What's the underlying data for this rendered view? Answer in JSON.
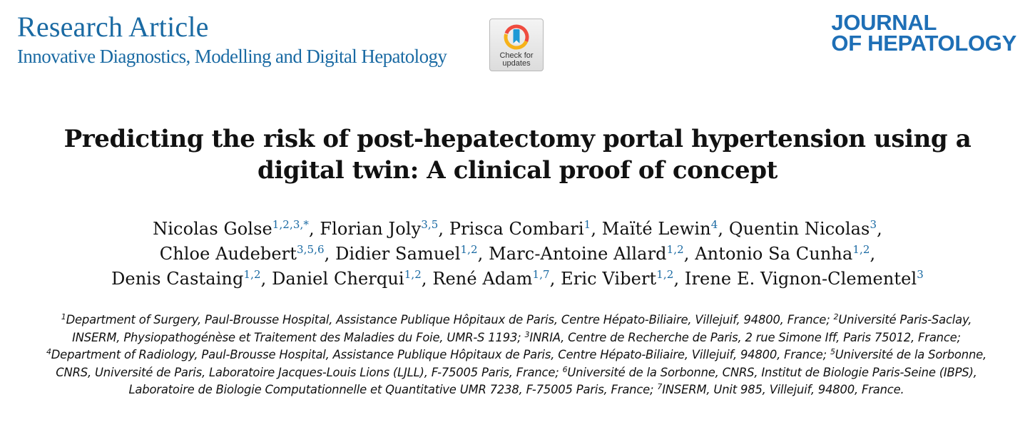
{
  "header": {
    "article_type": "Research Article",
    "section": "Innovative Diagnostics, Modelling and Digital Hepatology",
    "check_updates": "Check for\nupdates",
    "journal_line1": "JOURNAL",
    "journal_line2": "OF HEPATOLOGY"
  },
  "title": {
    "line1": "Predicting the risk of post-hepatectomy portal hypertension using a",
    "line2": "digital twin: A clinical proof of concept"
  },
  "authors": [
    {
      "name": "Nicolas Golse",
      "sup": "1,2,3,*",
      "sep": ", ",
      "br": false
    },
    {
      "name": "Florian Joly",
      "sup": "3,5",
      "sep": ", ",
      "br": false
    },
    {
      "name": "Prisca Combari",
      "sup": "1",
      "sep": ", ",
      "br": false
    },
    {
      "name": "Maïté Lewin",
      "sup": "4",
      "sep": ", ",
      "br": false
    },
    {
      "name": "Quentin Nicolas",
      "sup": "3",
      "sep": ",",
      "br": true
    },
    {
      "name": "Chloe Audebert",
      "sup": "3,5,6",
      "sep": ", ",
      "br": false
    },
    {
      "name": "Didier Samuel",
      "sup": "1,2",
      "sep": ", ",
      "br": false
    },
    {
      "name": "Marc-Antoine Allard",
      "sup": "1,2",
      "sep": ", ",
      "br": false
    },
    {
      "name": "Antonio Sa Cunha",
      "sup": "1,2",
      "sep": ",",
      "br": true
    },
    {
      "name": "Denis Castaing",
      "sup": "1,2",
      "sep": ", ",
      "br": false
    },
    {
      "name": "Daniel Cherqui",
      "sup": "1,2",
      "sep": ", ",
      "br": false
    },
    {
      "name": "René Adam",
      "sup": "1,7",
      "sep": ", ",
      "br": false
    },
    {
      "name": "Eric Vibert",
      "sup": "1,2",
      "sep": ", ",
      "br": false
    },
    {
      "name": "Irene E. Vignon-Clementel",
      "sup": "3",
      "sep": "",
      "br": false
    }
  ],
  "affiliations": [
    {
      "num": "1",
      "text": "Department of Surgery, Paul-Brousse Hospital, Assistance Publique Hôpitaux de Paris, Centre Hépato-Biliaire, Villejuif, 94800, France;"
    },
    {
      "num": "2",
      "text": "Université Paris-Saclay, INSERM, Physiopathogénèse et Traitement des Maladies du Foie, UMR-S 1193;"
    },
    {
      "num": "3",
      "text": "INRIA, Centre de Recherche de Paris, 2 rue Simone Iff, Paris 75012, France;"
    },
    {
      "num": "4",
      "text": "Department of Radiology, Paul-Brousse Hospital, Assistance Publique Hôpitaux de Paris, Centre Hépato-Biliaire, Villejuif, 94800, France;"
    },
    {
      "num": "5",
      "text": "Université de la Sorbonne, CNRS, Université de Paris, Laboratoire Jacques-Louis Lions (LJLL), F-75005 Paris, France;"
    },
    {
      "num": "6",
      "text": "Université de la Sorbonne, CNRS, Institut de Biologie Paris-Seine (IBPS), Laboratoire de Biologie Computationnelle et Quantitative UMR 7238, F-75005 Paris, France;"
    },
    {
      "num": "7",
      "text": "INSERM, Unit 985, Villejuif, 94800, France."
    }
  ],
  "colors": {
    "header_blue": "#1a6aa3",
    "journal_blue": "#1e6fb6",
    "text": "#111111"
  }
}
